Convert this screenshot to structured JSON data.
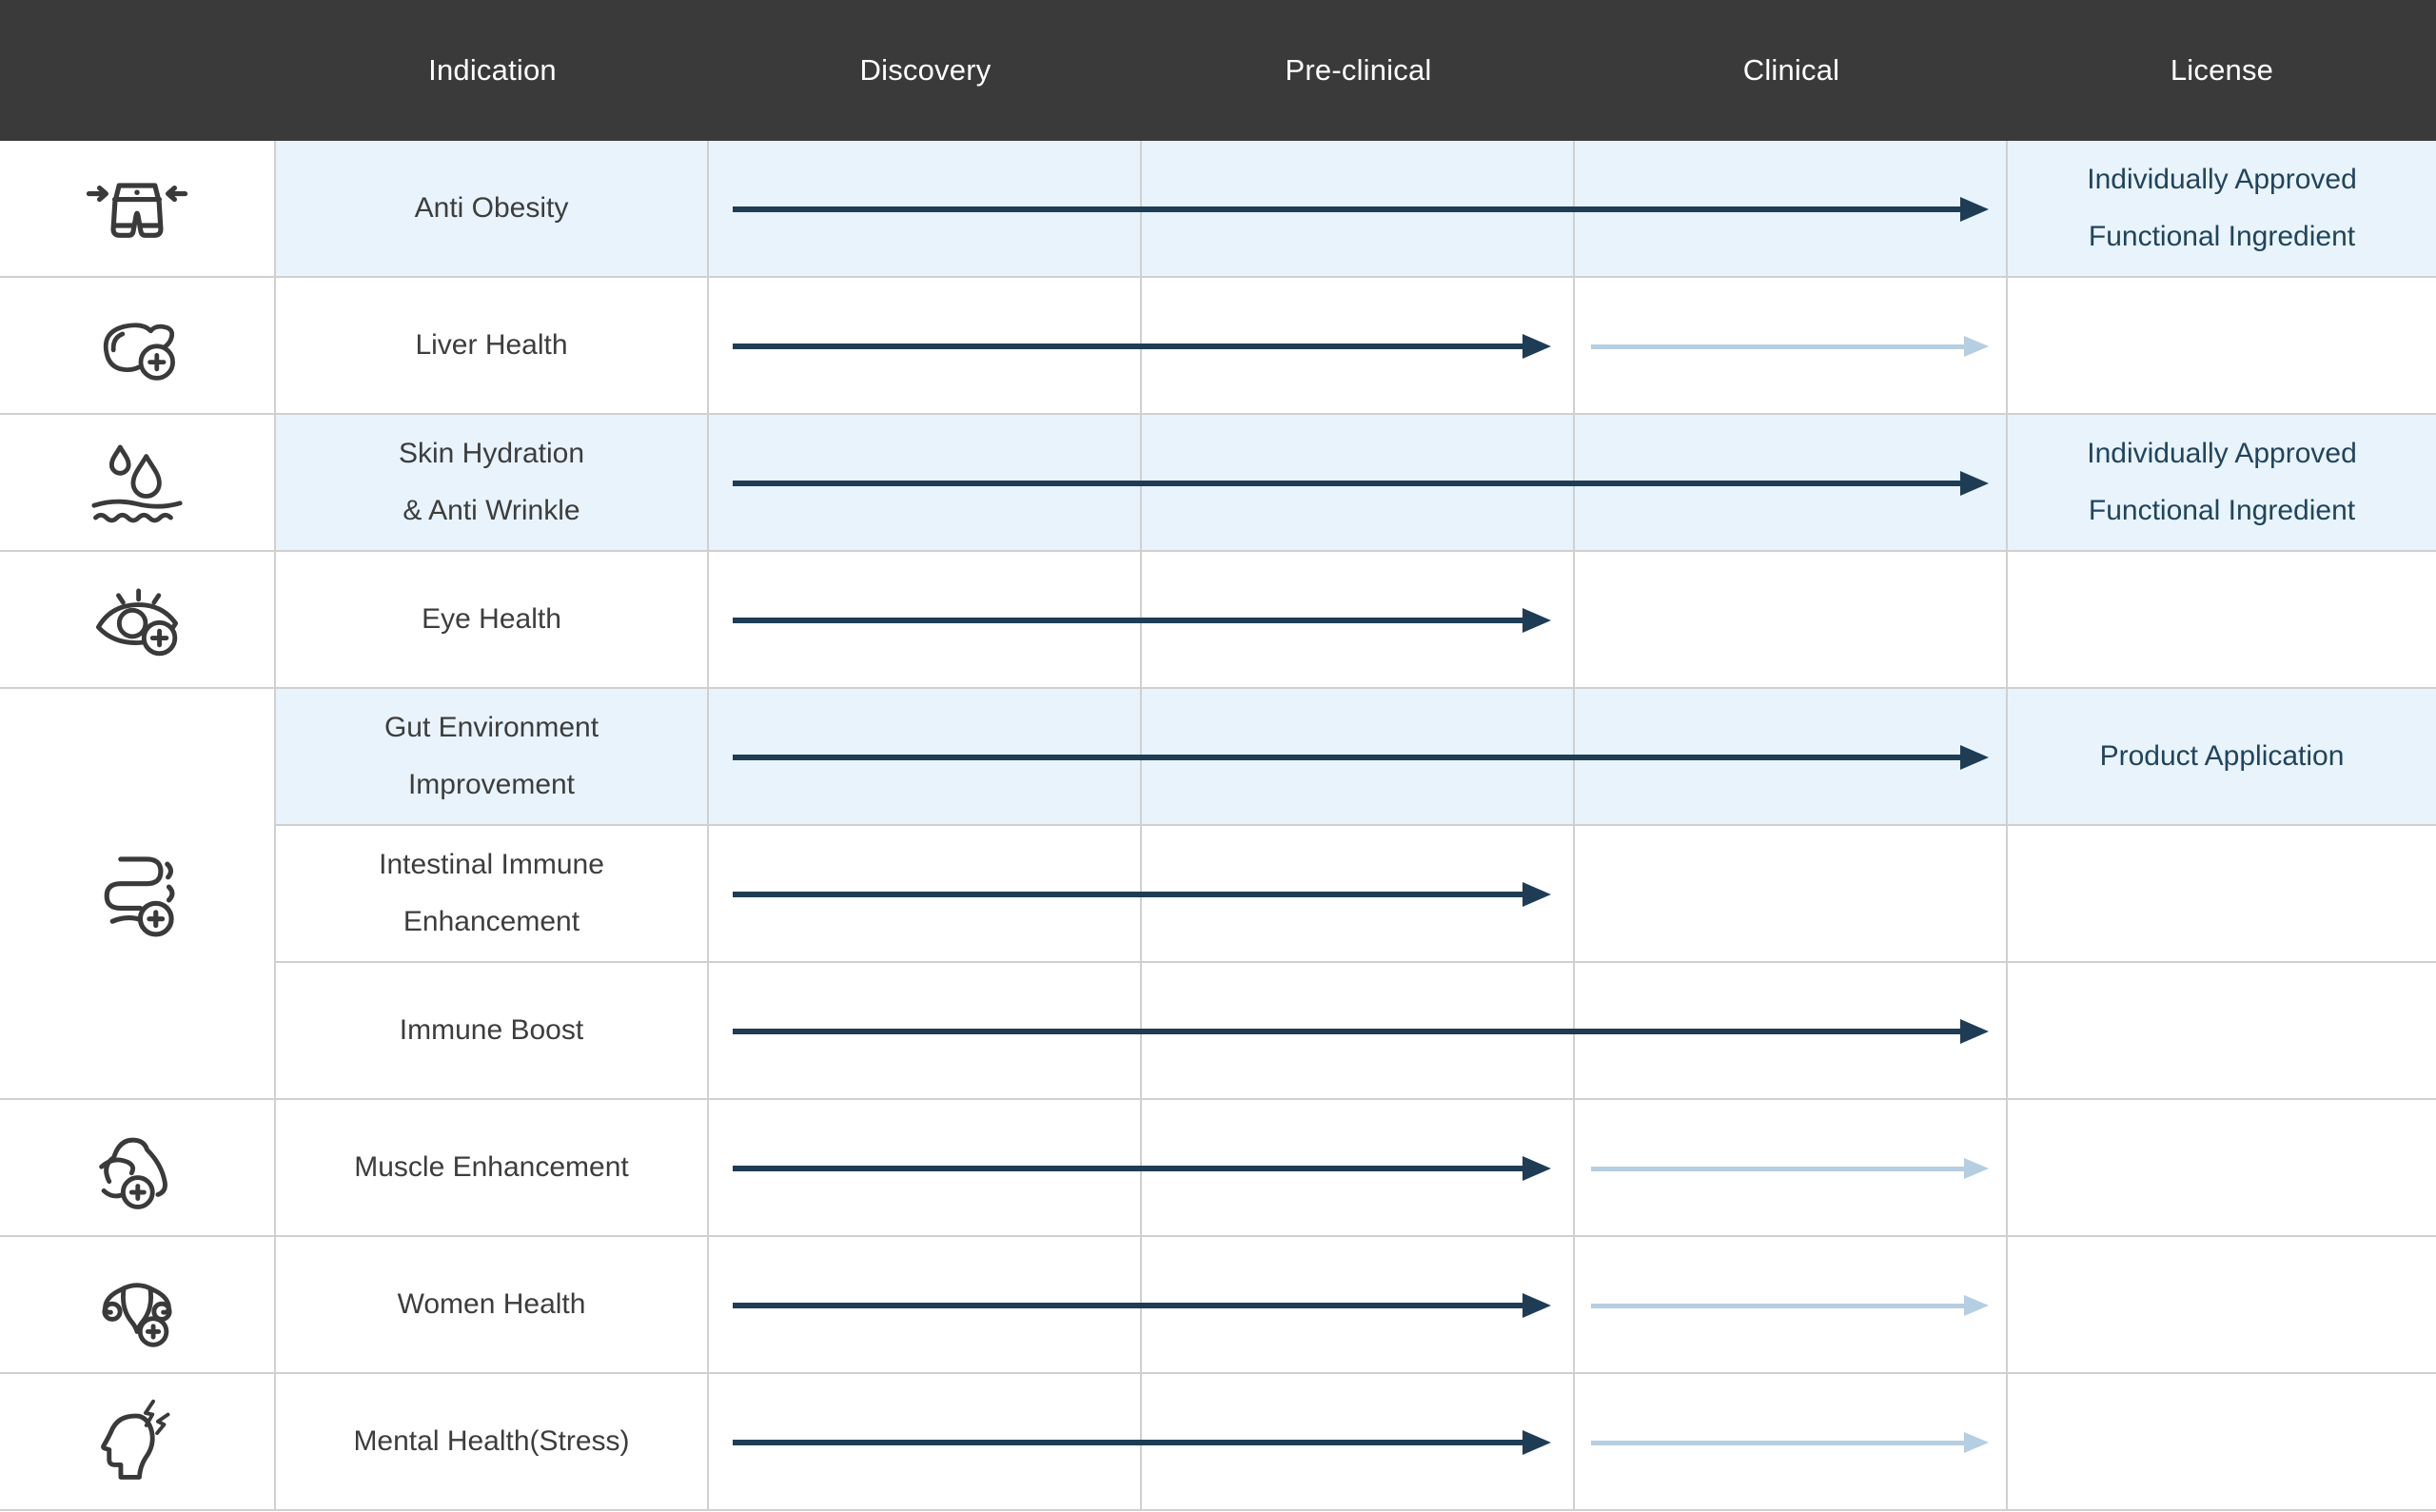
{
  "header": {
    "columns": [
      "Indication",
      "Discovery",
      "Pre-clinical",
      "Clinical",
      "License"
    ]
  },
  "colors": {
    "header_bg": "#3a3a3b",
    "header_text": "#ffffff",
    "highlight_row_bg": "#e8f3fc",
    "grid_line": "#d0d0d0",
    "arrow_dark": "#1e3d55",
    "arrow_light": "#b5cee1",
    "indication_text": "#3d3d3d",
    "license_text": "#21445c",
    "icon_stroke": "#3a3a3a"
  },
  "rows": [
    {
      "icon": "anti-obesity-icon",
      "label_lines": [
        "Anti Obesity"
      ],
      "highlight": true,
      "arrows": [
        {
          "style": "dark",
          "from": "discovery",
          "to": "clinical"
        }
      ],
      "license_lines": [
        "Individually Approved",
        "Functional Ingredient"
      ]
    },
    {
      "icon": "liver-health-icon",
      "label_lines": [
        "Liver Health"
      ],
      "highlight": false,
      "arrows": [
        {
          "style": "dark",
          "from": "discovery",
          "to": "preclinical"
        },
        {
          "style": "light",
          "from": "clinical",
          "to": "clinical"
        }
      ],
      "license_lines": []
    },
    {
      "icon": "skin-hydration-icon",
      "label_lines": [
        "Skin Hydration",
        "& Anti Wrinkle"
      ],
      "highlight": true,
      "arrows": [
        {
          "style": "dark",
          "from": "discovery",
          "to": "clinical"
        }
      ],
      "license_lines": [
        "Individually Approved",
        "Functional Ingredient"
      ]
    },
    {
      "icon": "eye-health-icon",
      "label_lines": [
        "Eye Health"
      ],
      "highlight": false,
      "arrows": [
        {
          "style": "dark",
          "from": "discovery",
          "to": "preclinical"
        }
      ],
      "license_lines": []
    },
    {
      "icon": "gut-icon",
      "label_lines": [
        "Gut Environment",
        "Improvement"
      ],
      "highlight": true,
      "arrows": [
        {
          "style": "dark",
          "from": "discovery",
          "to": "clinical"
        }
      ],
      "license_lines": [
        "Product Application"
      ]
    },
    {
      "icon": "gut-icon",
      "label_lines": [
        "Intestinal Immune",
        "Enhancement"
      ],
      "highlight": false,
      "arrows": [
        {
          "style": "dark",
          "from": "discovery",
          "to": "preclinical"
        }
      ],
      "license_lines": []
    },
    {
      "icon": "gut-icon",
      "label_lines": [
        "Immune Boost"
      ],
      "highlight": false,
      "arrows": [
        {
          "style": "dark",
          "from": "discovery",
          "to": "clinical"
        }
      ],
      "license_lines": []
    },
    {
      "icon": "muscle-icon",
      "label_lines": [
        "Muscle Enhancement"
      ],
      "highlight": false,
      "arrows": [
        {
          "style": "dark",
          "from": "discovery",
          "to": "preclinical"
        },
        {
          "style": "light",
          "from": "clinical",
          "to": "clinical"
        }
      ],
      "license_lines": []
    },
    {
      "icon": "women-health-icon",
      "label_lines": [
        "Women Health"
      ],
      "highlight": false,
      "arrows": [
        {
          "style": "dark",
          "from": "discovery",
          "to": "preclinical"
        },
        {
          "style": "light",
          "from": "clinical",
          "to": "clinical"
        }
      ],
      "license_lines": []
    },
    {
      "icon": "mental-health-icon",
      "label_lines": [
        "Mental Health(Stress)"
      ],
      "highlight": false,
      "arrows": [
        {
          "style": "dark",
          "from": "discovery",
          "to": "preclinical"
        },
        {
          "style": "light",
          "from": "clinical",
          "to": "clinical"
        }
      ],
      "license_lines": []
    }
  ]
}
